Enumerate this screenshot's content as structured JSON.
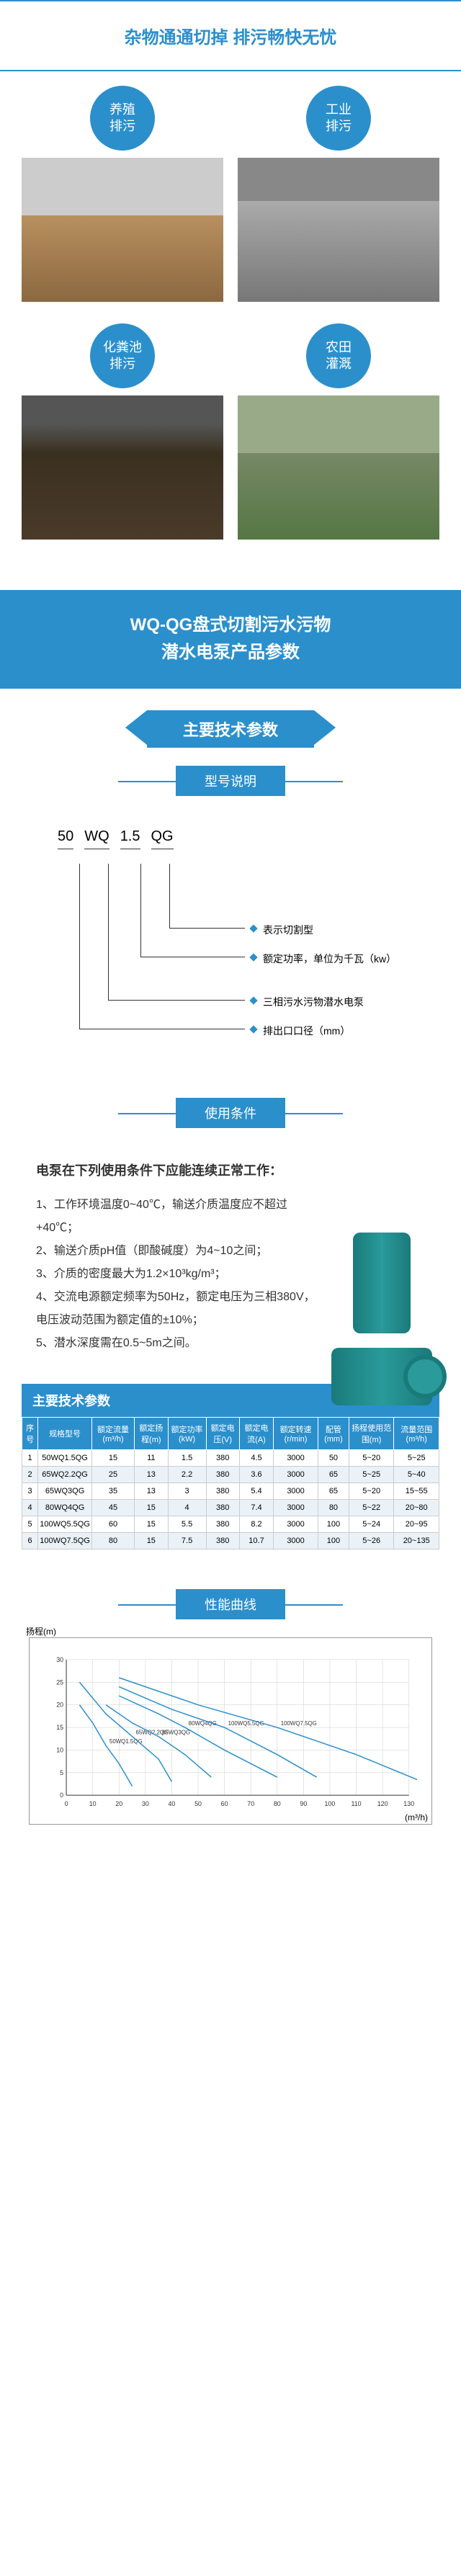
{
  "header1": "杂物通通切掉 排污畅快无忧",
  "apps": [
    {
      "label1": "养殖",
      "label2": "排污"
    },
    {
      "label1": "工业",
      "label2": "排污"
    },
    {
      "label1": "化粪池",
      "label2": "排污"
    },
    {
      "label1": "农田",
      "label2": "灌溉"
    }
  ],
  "banner": {
    "line1": "WQ-QG盘式切割污水污物",
    "line2": "潜水电泵产品参数"
  },
  "section_main_params": "主要技术参数",
  "section_model": "型号说明",
  "model_codes": [
    "50",
    "WQ",
    "1.5",
    "QG"
  ],
  "model_desc": [
    "表示切割型",
    "额定功率，单位为千瓦（kw）",
    "三相污水污物潜水电泵",
    "排出口口径（mm）"
  ],
  "section_conditions": "使用条件",
  "conditions_title": "电泵在下列使用条件下应能连续正常工作：",
  "conditions": [
    "1、工作环境温度0~40℃，输送介质温度应不超过+40℃；",
    "2、输送介质pH值（即酸碱度）为4~10之间；",
    "3、介质的密度最大为1.2×10³kg/m³；",
    "4、交流电源额定频率为50Hz，额定电压为三相380V，电压波动范围为额定值的±10%；",
    "5、潜水深度需在0.5~5m之间。"
  ],
  "params_table_title": "主要技术参数",
  "table_headers": [
    "序号",
    "规格型号",
    "额定流量(m³/h)",
    "额定扬程(m)",
    "额定功率(kW)",
    "额定电压(V)",
    "额定电流(A)",
    "额定转速(r/min)",
    "配管(mm)",
    "扬程使用范围(m)",
    "流量范围(m³/h)"
  ],
  "table_rows": [
    [
      "1",
      "50WQ1.5QG",
      "15",
      "11",
      "1.5",
      "380",
      "4.5",
      "3000",
      "50",
      "5~20",
      "5~25"
    ],
    [
      "2",
      "65WQ2.2QG",
      "25",
      "13",
      "2.2",
      "380",
      "3.6",
      "3000",
      "65",
      "5~25",
      "5~40"
    ],
    [
      "3",
      "65WQ3QG",
      "35",
      "13",
      "3",
      "380",
      "5.4",
      "3000",
      "65",
      "5~20",
      "15~55"
    ],
    [
      "4",
      "80WQ4QG",
      "45",
      "15",
      "4",
      "380",
      "7.4",
      "3000",
      "80",
      "5~22",
      "20~80"
    ],
    [
      "5",
      "100WQ5.5QG",
      "60",
      "15",
      "5.5",
      "380",
      "8.2",
      "3000",
      "100",
      "5~24",
      "20~95"
    ],
    [
      "6",
      "100WQ7.5QG",
      "80",
      "15",
      "7.5",
      "380",
      "10.7",
      "3000",
      "100",
      "5~26",
      "20~135"
    ]
  ],
  "section_chart": "性能曲线",
  "chart": {
    "y_label": "扬程(m)",
    "x_label": "(m³/h)",
    "x_ticks": [
      0,
      10,
      20,
      30,
      40,
      50,
      60,
      70,
      80,
      90,
      100,
      110,
      120,
      130
    ],
    "y_ticks": [
      0,
      5,
      10,
      15,
      20,
      25,
      30
    ],
    "x_max": 130,
    "y_max": 30,
    "grid_color": "#ccc",
    "line_color": "#2b8fcc",
    "curves": [
      {
        "label": "50WQ1.5QG",
        "points": [
          [
            5,
            20
          ],
          [
            10,
            16
          ],
          [
            15,
            11
          ],
          [
            20,
            7
          ],
          [
            25,
            2
          ]
        ]
      },
      {
        "label": "65WQ2.2QG",
        "points": [
          [
            5,
            25
          ],
          [
            15,
            18
          ],
          [
            25,
            13
          ],
          [
            35,
            8
          ],
          [
            40,
            3
          ]
        ]
      },
      {
        "label": "65WQ3QG",
        "points": [
          [
            15,
            20
          ],
          [
            25,
            16
          ],
          [
            35,
            13
          ],
          [
            45,
            9
          ],
          [
            55,
            4
          ]
        ]
      },
      {
        "label": "80WQ4QG",
        "points": [
          [
            20,
            22
          ],
          [
            35,
            18
          ],
          [
            45,
            15
          ],
          [
            60,
            10
          ],
          [
            80,
            4
          ]
        ]
      },
      {
        "label": "100WQ5.5QG",
        "points": [
          [
            20,
            24
          ],
          [
            40,
            19
          ],
          [
            60,
            15
          ],
          [
            80,
            9
          ],
          [
            95,
            4
          ]
        ]
      },
      {
        "label": "100WQ7.5QG",
        "points": [
          [
            20,
            26
          ],
          [
            50,
            20
          ],
          [
            80,
            15
          ],
          [
            110,
            9
          ],
          [
            135,
            3
          ]
        ]
      }
    ]
  }
}
